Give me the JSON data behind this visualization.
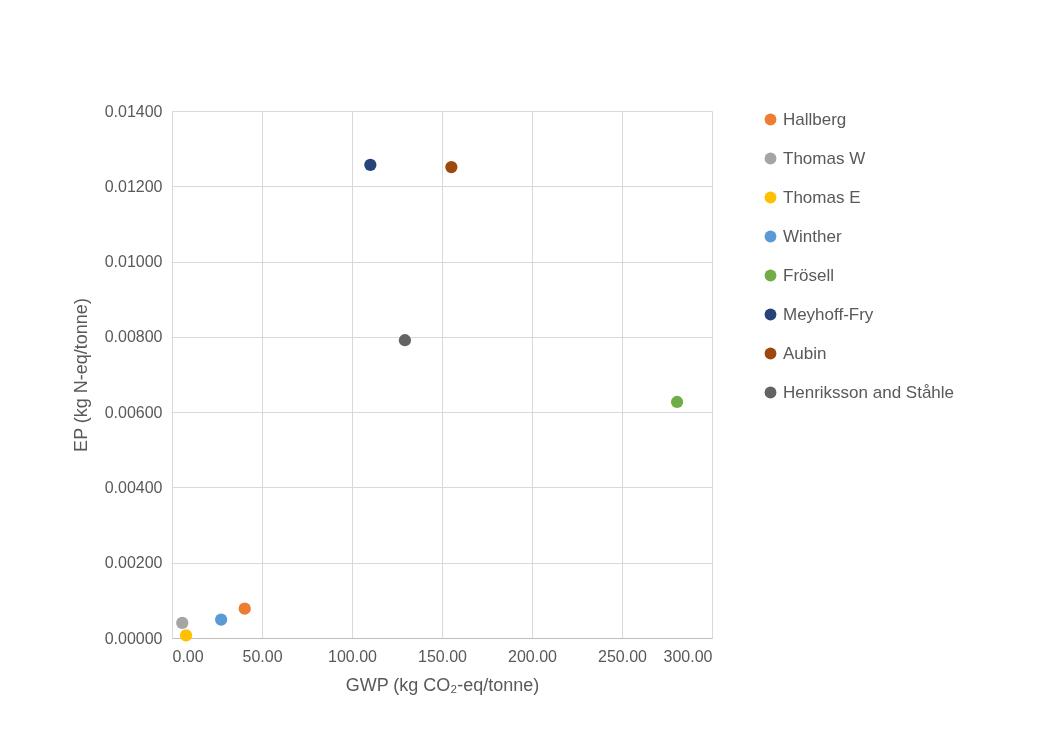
{
  "chart_data": {
    "type": "scatter",
    "xlabel": "GWP (kg CO₂-eq/tonne)",
    "ylabel": "EP (kg N-eq/tonne)",
    "xlim": [
      0,
      300
    ],
    "ylim": [
      0,
      0.014
    ],
    "xticks": [
      {
        "value": 0,
        "label": "0.00"
      },
      {
        "value": 50,
        "label": "50.00"
      },
      {
        "value": 100,
        "label": "100.00"
      },
      {
        "value": 150,
        "label": "150.00"
      },
      {
        "value": 200,
        "label": "200.00"
      },
      {
        "value": 250,
        "label": "250.00"
      },
      {
        "value": 300,
        "label": "300.00"
      }
    ],
    "yticks": [
      {
        "value": 0,
        "label": "0.00000"
      },
      {
        "value": 0.002,
        "label": "0.00200"
      },
      {
        "value": 0.004,
        "label": "0.00400"
      },
      {
        "value": 0.006,
        "label": "0.00600"
      },
      {
        "value": 0.008,
        "label": "0.00800"
      },
      {
        "value": 0.01,
        "label": "0.01000"
      },
      {
        "value": 0.012,
        "label": "0.01200"
      },
      {
        "value": 0.014,
        "label": "0.01400"
      }
    ],
    "grid": true,
    "legend": "right",
    "marker": "circle",
    "series": [
      {
        "name": "Hallberg",
        "color": "#ed7d31",
        "x": [
          40.4
        ],
        "values": [
          0.00078
        ]
      },
      {
        "name": "Thomas W",
        "color": "#a5a5a5",
        "x": [
          5.7
        ],
        "values": [
          0.0004
        ]
      },
      {
        "name": "Thomas E",
        "color": "#ffc000",
        "x": [
          7.8
        ],
        "values": [
          7e-05
        ]
      },
      {
        "name": "Winther",
        "color": "#5b9bd5",
        "x": [
          27.3
        ],
        "values": [
          0.00049
        ]
      },
      {
        "name": "Frösell",
        "color": "#70ad47",
        "x": [
          280.6
        ],
        "values": [
          0.00627
        ]
      },
      {
        "name": "Meyhoff-Fry",
        "color": "#264478",
        "x": [
          110.2
        ],
        "values": [
          0.01257
        ]
      },
      {
        "name": "Aubin",
        "color": "#9e480e",
        "x": [
          155.2
        ],
        "values": [
          0.01251
        ]
      },
      {
        "name": "Henriksson and Ståhle",
        "color": "#636363",
        "x": [
          129.4
        ],
        "values": [
          0.00791
        ]
      }
    ]
  }
}
